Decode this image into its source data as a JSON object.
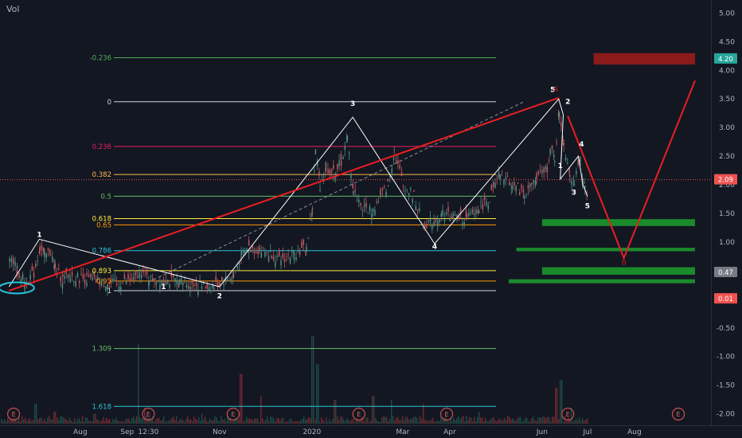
{
  "header": {
    "volume_label": "Vol"
  },
  "colors": {
    "background": "#131722",
    "axis_text": "#b2b5be",
    "elliott": "#e91e24",
    "candle_up": "#4f8f85",
    "candle_down": "#c2585e",
    "dashed": "#8c8f99",
    "vol_up": "#1f4a45",
    "vol_down": "#6e2a30",
    "zone_green": "#1b8a2c",
    "zone_red": "#8b1a1a"
  },
  "chart_data": {
    "type": "candlestick",
    "title": "",
    "y_axis": {
      "ticks": [
        5.0,
        4.5,
        4.0,
        3.5,
        3.0,
        2.5,
        2.0,
        1.5,
        1.0,
        0.5,
        -0.5,
        -1.0,
        -1.5,
        -2.0
      ],
      "ylim": [
        -2.2,
        5.2
      ]
    },
    "x_axis": {
      "ticks": [
        {
          "label": "Aug",
          "date": "2019-08-01"
        },
        {
          "label": "Sep",
          "date": "2019-09-01"
        },
        {
          "label": "12:30",
          "date": "2019-09-15"
        },
        {
          "label": "Nov",
          "date": "2019-11-01"
        },
        {
          "label": "2020",
          "date": "2020-01-01"
        },
        {
          "label": "Mar",
          "date": "2020-03-01"
        },
        {
          "label": "Apr",
          "date": "2020-04-01"
        },
        {
          "label": "Jun",
          "date": "2020-06-01"
        },
        {
          "label": "Jul",
          "date": "2020-07-01"
        },
        {
          "label": "Aug",
          "date": "2020-08-01"
        }
      ]
    },
    "price_badges": [
      {
        "label": "4.20",
        "value": 4.2,
        "color": "#26a69a"
      },
      {
        "label": "2.09",
        "value": 2.09,
        "color": "#ef5350"
      },
      {
        "label": "0.47",
        "value": 0.47,
        "color": "#787b86"
      },
      {
        "label": "0.01",
        "value": 0.01,
        "color": "#ef5350"
      }
    ],
    "fib_levels": [
      {
        "label": "-0.236",
        "value": 4.22,
        "color": "#4caf50"
      },
      {
        "label": "0",
        "value": 3.45,
        "color": "#d1d4dc"
      },
      {
        "label": "0.236",
        "value": 2.67,
        "color": "#e91e63"
      },
      {
        "label": "0.382",
        "value": 2.18,
        "color": "#ffb74d"
      },
      {
        "label": "0.5",
        "value": 1.8,
        "color": "#66bb6a"
      },
      {
        "label": "0.618",
        "value": 1.41,
        "color": "#ffeb3b"
      },
      {
        "label": "0.65",
        "value": 1.3,
        "color": "#ff9800"
      },
      {
        "label": "0.786",
        "value": 0.85,
        "color": "#26c6da"
      },
      {
        "label": "0.893",
        "value": 0.5,
        "color": "#ffeb3b"
      },
      {
        "label": "0.95",
        "value": 0.32,
        "color": "#ff9800"
      },
      {
        "label": "1",
        "value": 0.15,
        "color": "#d1d4dc"
      },
      {
        "label": "1.309",
        "value": -0.86,
        "color": "#66bb6a"
      },
      {
        "label": "1.618",
        "value": -1.87,
        "color": "#26c6da"
      }
    ],
    "price_series": [
      [
        "2019-06-15",
        0.8
      ],
      [
        "2019-06-20",
        0.5
      ],
      [
        "2019-06-25",
        0.3
      ],
      [
        "2019-07-01",
        0.45
      ],
      [
        "2019-07-05",
        0.9
      ],
      [
        "2019-07-08",
        0.75
      ],
      [
        "2019-07-12",
        0.85
      ],
      [
        "2019-07-15",
        0.5
      ],
      [
        "2019-07-20",
        0.35
      ],
      [
        "2019-07-25",
        0.4
      ],
      [
        "2019-08-05",
        0.35
      ],
      [
        "2019-08-15",
        0.3
      ],
      [
        "2019-08-25",
        0.27
      ],
      [
        "2019-09-05",
        0.33
      ],
      [
        "2019-09-10",
        0.48
      ],
      [
        "2019-09-15",
        0.36
      ],
      [
        "2019-09-25",
        0.34
      ],
      [
        "2019-10-05",
        0.3
      ],
      [
        "2019-10-15",
        0.25
      ],
      [
        "2019-10-28",
        0.22
      ],
      [
        "2019-11-01",
        0.3
      ],
      [
        "2019-11-10",
        0.4
      ],
      [
        "2019-11-15",
        0.75
      ],
      [
        "2019-11-20",
        0.9
      ],
      [
        "2019-11-27",
        0.85
      ],
      [
        "2019-12-05",
        0.8
      ],
      [
        "2019-12-10",
        0.68
      ],
      [
        "2019-12-20",
        0.8
      ],
      [
        "2019-12-28",
        0.9
      ],
      [
        "2020-01-01",
        1.6
      ],
      [
        "2020-01-03",
        2.6
      ],
      [
        "2020-01-06",
        2.0
      ],
      [
        "2020-01-10",
        2.3
      ],
      [
        "2020-01-15",
        2.2
      ],
      [
        "2020-01-20",
        2.4
      ],
      [
        "2020-01-24",
        2.8
      ],
      [
        "2020-01-28",
        1.9
      ],
      [
        "2020-02-03",
        1.6
      ],
      [
        "2020-02-10",
        1.55
      ],
      [
        "2020-02-15",
        1.8
      ],
      [
        "2020-02-20",
        2.0
      ],
      [
        "2020-02-24",
        2.6
      ],
      [
        "2020-03-01",
        2.0
      ],
      [
        "2020-03-08",
        1.8
      ],
      [
        "2020-03-14",
        1.3
      ],
      [
        "2020-03-20",
        1.35
      ],
      [
        "2020-03-27",
        1.5
      ],
      [
        "2020-04-03",
        1.45
      ],
      [
        "2020-04-12",
        1.4
      ],
      [
        "2020-04-20",
        1.6
      ],
      [
        "2020-04-27",
        1.75
      ],
      [
        "2020-05-04",
        2.2
      ],
      [
        "2020-05-12",
        2.0
      ],
      [
        "2020-05-20",
        1.85
      ],
      [
        "2020-05-28",
        2.1
      ],
      [
        "2020-06-04",
        2.3
      ],
      [
        "2020-06-06",
        2.6
      ],
      [
        "2020-06-09",
        2.45
      ],
      [
        "2020-06-12",
        3.3
      ],
      [
        "2020-06-15",
        2.7
      ],
      [
        "2020-06-19",
        2.2
      ],
      [
        "2020-06-22",
        2.05
      ],
      [
        "2020-06-26",
        2.4
      ],
      [
        "2020-06-29",
        1.9
      ],
      [
        "2020-07-01",
        1.75
      ]
    ],
    "wave_counts": [
      {
        "label": "1",
        "date": "2019-07-05",
        "value": 1.09
      },
      {
        "label": "1",
        "date": "2019-09-25",
        "value": 0.18
      },
      {
        "label": "2",
        "date": "2019-11-01",
        "value": 0.02
      },
      {
        "label": "3",
        "date": "2020-01-28",
        "value": 3.38
      },
      {
        "label": "4",
        "date": "2020-03-22",
        "value": 0.88
      },
      {
        "label": "5",
        "date": "2020-06-08",
        "value": 3.62
      },
      {
        "label": "2",
        "date": "2020-06-18",
        "value": 3.41
      },
      {
        "label": "1",
        "date": "2020-06-13",
        "value": 2.29
      },
      {
        "label": "3",
        "date": "2020-06-22",
        "value": 1.83
      },
      {
        "label": "4",
        "date": "2020-06-27",
        "value": 2.67
      },
      {
        "label": "5",
        "date": "2020-07-01",
        "value": 1.59
      }
    ],
    "white_wave_path": [
      [
        "2019-06-15",
        0.22
      ],
      [
        "2019-07-05",
        1.05
      ],
      [
        "2019-11-01",
        0.22
      ],
      [
        "2020-01-28",
        3.18
      ],
      [
        "2020-03-22",
        0.97
      ],
      [
        "2020-06-12",
        3.5
      ],
      [
        "2020-06-15",
        3.22
      ],
      [
        "2020-06-13",
        2.1
      ],
      [
        "2020-06-25",
        2.5
      ],
      [
        "2020-06-28",
        2.0
      ],
      [
        "2020-07-01",
        1.8
      ]
    ],
    "red_trendline": [
      [
        "2019-06-15",
        0.15
      ],
      [
        "2020-06-12",
        3.52
      ]
    ],
    "red_projection": [
      [
        "2020-06-18",
        3.2
      ],
      [
        "2020-07-25",
        0.72
      ],
      [
        "2020-09-10",
        3.82
      ]
    ],
    "dashed_trendline": [
      [
        "2019-09-15",
        0.3
      ],
      [
        "2020-05-20",
        3.45
      ]
    ],
    "zones_green": [
      {
        "from": "2020-06-01",
        "to": "2020-09-10",
        "y_top": 1.4,
        "y_bottom": 1.28
      },
      {
        "from": "2020-05-15",
        "to": "2020-09-10",
        "y_top": 0.9,
        "y_bottom": 0.84
      },
      {
        "from": "2020-06-01",
        "to": "2020-09-10",
        "y_top": 0.56,
        "y_bottom": 0.43
      },
      {
        "from": "2020-05-10",
        "to": "2020-09-10",
        "y_top": 0.35,
        "y_bottom": 0.28
      }
    ],
    "zones_red": [
      {
        "from": "2020-07-05",
        "to": "2020-09-10",
        "y_top": 4.3,
        "y_bottom": 4.1
      }
    ],
    "projection_marker": {
      "label": "0",
      "date": "2020-07-25",
      "value": 0.6
    },
    "red_marker": {
      "label": "A",
      "date": "2020-06-10",
      "value": 3.63
    },
    "event_markers": [
      {
        "label": "E",
        "date": "2019-06-18"
      },
      {
        "label": "E",
        "date": "2019-09-15"
      },
      {
        "label": "E",
        "date": "2019-11-10"
      },
      {
        "label": "E",
        "date": "2020-02-01"
      },
      {
        "label": "E",
        "date": "2020-03-30"
      },
      {
        "label": "E",
        "date": "2020-06-18"
      },
      {
        "label": "E",
        "date": "2020-08-30"
      }
    ],
    "volume": [
      [
        "2019-07-02",
        10
      ],
      [
        "2019-07-15",
        6
      ],
      [
        "2019-08-10",
        5
      ],
      [
        "2019-09-08",
        40
      ],
      [
        "2019-09-12",
        8
      ],
      [
        "2019-10-20",
        5
      ],
      [
        "2019-11-15",
        25
      ],
      [
        "2019-11-28",
        14
      ],
      [
        "2020-01-01",
        44
      ],
      [
        "2020-01-04",
        30
      ],
      [
        "2020-01-16",
        12
      ],
      [
        "2020-02-10",
        14
      ],
      [
        "2020-02-22",
        12
      ],
      [
        "2020-03-14",
        10
      ],
      [
        "2020-04-20",
        6
      ],
      [
        "2020-06-10",
        18
      ],
      [
        "2020-06-13",
        22
      ],
      [
        "2020-06-20",
        8
      ]
    ]
  }
}
